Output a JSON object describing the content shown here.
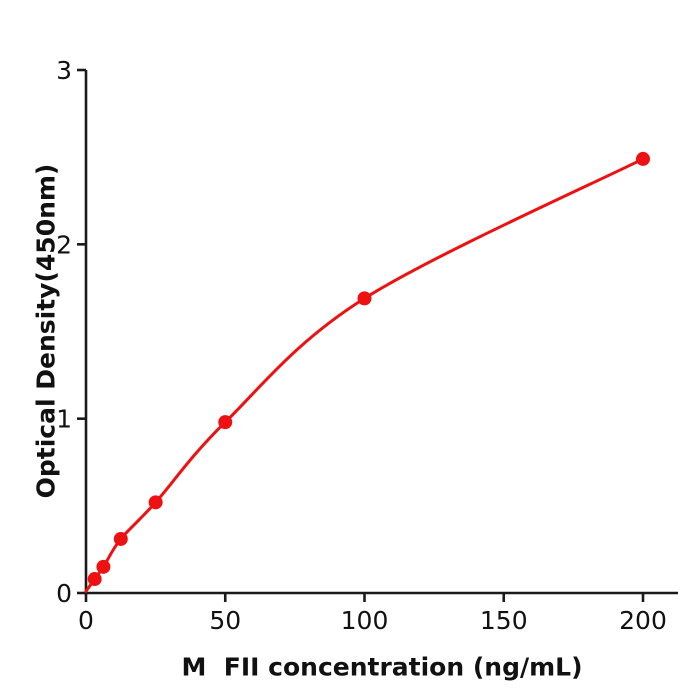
{
  "figure": {
    "background": "#ffffff",
    "axis_color": "#1a1a1a",
    "accent_color": "#ee1111"
  },
  "chart_data": {
    "type": "line",
    "title": "",
    "xlabel": "M  FII concentration (ng/mL)",
    "ylabel": "Optical Density(450nm)",
    "x": [
      3.125,
      6.25,
      12.5,
      25,
      50,
      100,
      200
    ],
    "y": [
      0.08,
      0.15,
      0.31,
      0.52,
      0.98,
      1.69,
      2.49
    ],
    "curve_start": {
      "x": 0,
      "y": 0.01
    },
    "x_ticks": [
      0,
      50,
      100,
      150,
      200
    ],
    "y_ticks": [
      0,
      1,
      2,
      3
    ],
    "xlim": [
      0,
      212.5
    ],
    "ylim": [
      0,
      3
    ],
    "grid": false,
    "legend": false,
    "marker": "circle",
    "line_color": "#ee1111",
    "marker_color": "#ee1111"
  }
}
